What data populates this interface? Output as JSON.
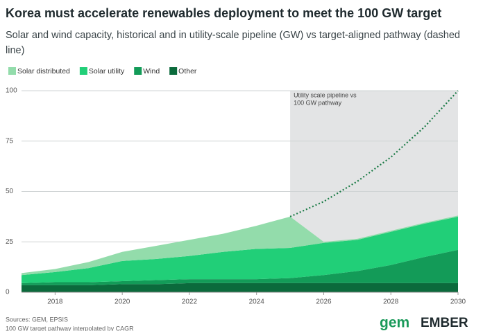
{
  "chart_data": {
    "type": "stacked-area",
    "title": "Korea must accelerate renewables deployment to meet the 100 GW target",
    "subtitle": "Solar and wind capacity, historical and in utility-scale pipeline (GW) vs target-aligned pathway (dashed line)",
    "x": [
      2017,
      2018,
      2019,
      2020,
      2021,
      2022,
      2023,
      2024,
      2025,
      2026,
      2027,
      2028,
      2029,
      2030
    ],
    "series": [
      {
        "name": "Other",
        "color": "#0b6a3c",
        "values": [
          3.5,
          3.5,
          3.5,
          4,
          4,
          4.5,
          4.5,
          4.5,
          4.5,
          4.5,
          4.5,
          4.5,
          4.5,
          4.5
        ]
      },
      {
        "name": "Wind",
        "color": "#139b58",
        "values": [
          1,
          1.5,
          1.5,
          1.5,
          2,
          2,
          2,
          2,
          2.5,
          4,
          6,
          9,
          13,
          16.5
        ]
      },
      {
        "name": "Solar utility",
        "color": "#21cf78",
        "values": [
          4,
          5,
          7,
          10,
          10.5,
          11.5,
          13.5,
          15,
          15,
          16,
          15.5,
          16.5,
          16.5,
          16.5
        ]
      },
      {
        "name": "Solar distributed",
        "color": "#93dcab",
        "values": [
          1,
          1.5,
          3,
          4.5,
          6.5,
          8,
          9,
          11.5,
          15.5,
          0.5,
          0.5,
          0.5,
          0.5,
          0.5
        ]
      }
    ],
    "target": {
      "color": "#1a7a45",
      "values": [
        null,
        null,
        null,
        null,
        null,
        null,
        null,
        null,
        37.5,
        45,
        55,
        67,
        82,
        100
      ]
    },
    "legend_order": [
      3,
      2,
      1,
      0
    ],
    "highlight_x": [
      2025,
      2030
    ],
    "annotation": [
      "Utility scale pipeline vs",
      "100 GW pathway"
    ],
    "xlim": [
      2017,
      2030
    ],
    "xticks": [
      2018,
      2020,
      2022,
      2024,
      2026,
      2028,
      2030
    ],
    "ylim": [
      0,
      100
    ],
    "yticks": [
      0,
      25,
      50,
      75,
      100
    ],
    "grid": true,
    "sources": [
      "Sources: GEM, EPSIS",
      "100 GW target pathway interpolated by CAGR"
    ],
    "logos": [
      "gem",
      "EMBER"
    ]
  }
}
